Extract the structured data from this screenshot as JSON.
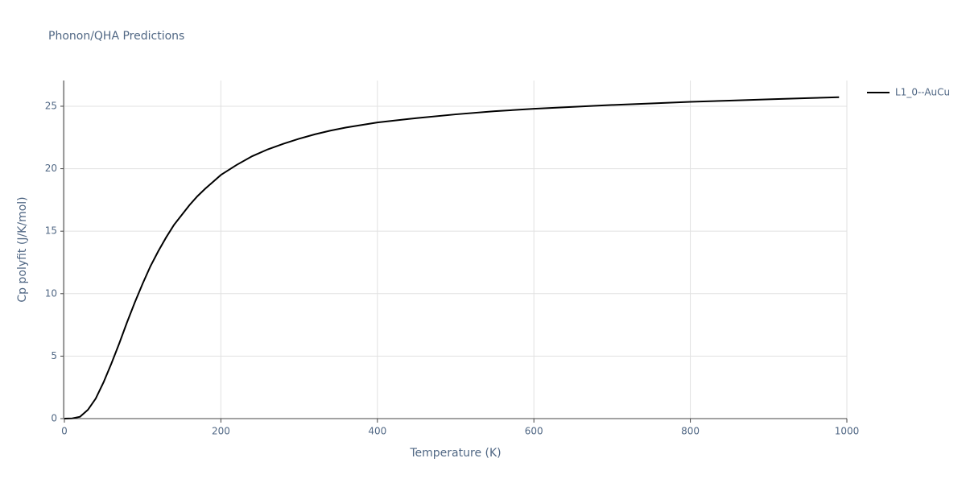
{
  "chart_data": {
    "type": "line",
    "title": "Phonon/QHA Predictions",
    "x_label": "Temperature (K)",
    "y_label": "Cp polyfit (J/K/mol)",
    "x": [
      0,
      10,
      20,
      30,
      40,
      50,
      60,
      70,
      80,
      90,
      100,
      110,
      120,
      130,
      140,
      150,
      160,
      170,
      180,
      190,
      200,
      220,
      240,
      260,
      280,
      300,
      320,
      340,
      360,
      380,
      400,
      450,
      500,
      550,
      600,
      650,
      700,
      750,
      800,
      850,
      900,
      950,
      990
    ],
    "series": [
      {
        "name": "L1_0--AuCu",
        "color": "#000000",
        "values": [
          0,
          0.02,
          0.15,
          0.7,
          1.6,
          2.9,
          4.4,
          6.0,
          7.7,
          9.3,
          10.8,
          12.2,
          13.4,
          14.5,
          15.5,
          16.3,
          17.1,
          17.8,
          18.4,
          18.95,
          19.5,
          20.3,
          21.0,
          21.55,
          22.0,
          22.4,
          22.75,
          23.05,
          23.3,
          23.5,
          23.7,
          24.05,
          24.35,
          24.6,
          24.8,
          24.95,
          25.1,
          25.22,
          25.35,
          25.45,
          25.55,
          25.65,
          25.72
        ]
      }
    ],
    "xlim": [
      0,
      1000
    ],
    "xticks": [
      0,
      200,
      400,
      600,
      800,
      1000
    ],
    "ylim": [
      0,
      27.06
    ],
    "yticks": [
      0,
      5,
      10,
      15,
      20,
      25
    ],
    "grid": true,
    "legend": "right"
  }
}
